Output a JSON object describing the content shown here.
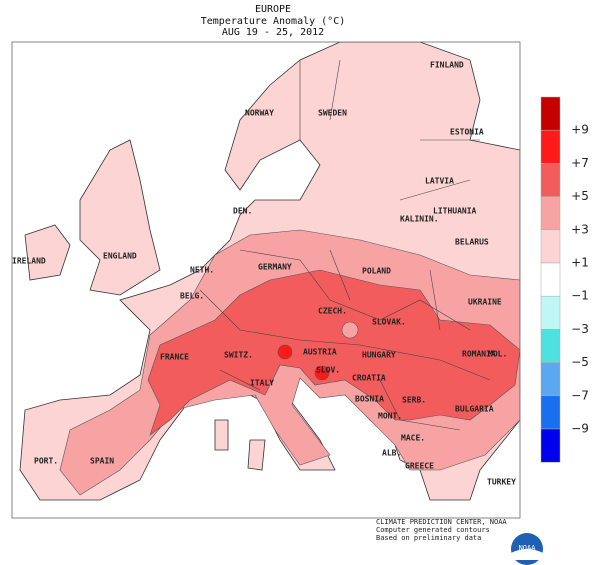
{
  "title": {
    "region": "EUROPE",
    "subtitle": "Temperature Anomaly (°C)",
    "dates": "AUG 19 - 25, 2012"
  },
  "countries": [
    "FINLAND",
    "NORWAY",
    "SWEDEN",
    "ESTONIA",
    "LATVIA",
    "DEN.",
    "KALININ.",
    "LITHUANIA",
    "IRELAND",
    "ENGLAND",
    "BELARUS",
    "NETH.",
    "GERMANY",
    "POLAND",
    "BELG.",
    "UKRAINE",
    "CZECH.",
    "SLOVAK.",
    "FRANCE",
    "SWITZ.",
    "AUSTRIA",
    "HUNGARY",
    "ROMANIA",
    "MOL.",
    "SLOV.",
    "CROATIA",
    "ITALY",
    "BOSNIA",
    "SERB.",
    "MONT.",
    "BULGARIA",
    "PORT.",
    "SPAIN",
    "MACE.",
    "ALB.",
    "GREECE",
    "TURKEY"
  ],
  "legend": {
    "labels": [
      "+9",
      "+7",
      "+5",
      "+3",
      "+1",
      "−1",
      "−3",
      "−5",
      "−7",
      "−9"
    ],
    "colors": [
      "#c40000",
      "#ff1a1a",
      "#f25c5c",
      "#f7a3a3",
      "#fcd4d4",
      "#ffffff",
      "#bff7f7",
      "#4fe0e0",
      "#5aa8f0",
      "#1a6ff0",
      "#0000ee"
    ]
  },
  "credits": [
    "CLIMATE PREDICTION CENTER, NOAA",
    "Computer generated contours",
    "Based on preliminary data"
  ],
  "logo": "NOAA"
}
